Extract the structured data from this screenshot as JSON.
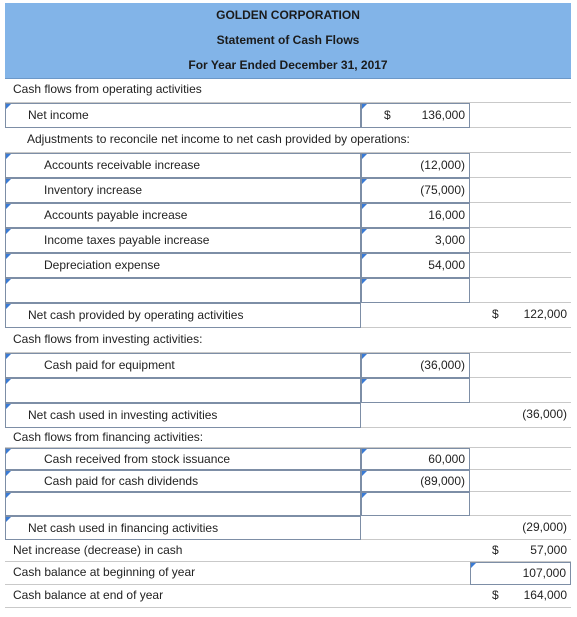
{
  "header": {
    "title": "GOLDEN CORPORATION",
    "subtitle": "Statement of Cash Flows",
    "period": "For Year Ended December 31, 2017"
  },
  "rows": [
    {
      "label": "Cash flows from operating activities"
    },
    {
      "label": "Net income",
      "amount_symbol": "$",
      "amount": "136,000"
    },
    {
      "label": "Adjustments to reconcile net income to net cash provided by operations:"
    },
    {
      "label": "Accounts receivable increase",
      "amount": "(12,000)"
    },
    {
      "label": "Inventory increase",
      "amount": "(75,000)"
    },
    {
      "label": "Accounts payable increase",
      "amount": "16,000"
    },
    {
      "label": "Income taxes payable increase",
      "amount": "3,000"
    },
    {
      "label": "Depreciation expense",
      "amount": "54,000"
    },
    {
      "label": "Net cash provided by operating activities",
      "total_symbol": "$",
      "total": "122,000"
    },
    {
      "label": "Cash flows from investing activities:"
    },
    {
      "label": "Cash paid for equipment",
      "amount": "(36,000)"
    },
    {
      "label": "Net cash used in investing activities",
      "total": "(36,000)"
    },
    {
      "label": "Cash flows from financing activities:"
    },
    {
      "label": "Cash received from stock issuance",
      "amount": "60,000"
    },
    {
      "label": "Cash paid for cash dividends",
      "amount": "(89,000)"
    },
    {
      "label": "Net cash used in financing activities",
      "total": "(29,000)"
    },
    {
      "label": "Net increase (decrease) in cash",
      "total_symbol": "$",
      "total": "57,000"
    },
    {
      "label": "Cash balance at beginning of year",
      "total": "107,000"
    },
    {
      "label": "Cash balance at end of year",
      "total_symbol": "$",
      "total": "164,000"
    }
  ]
}
